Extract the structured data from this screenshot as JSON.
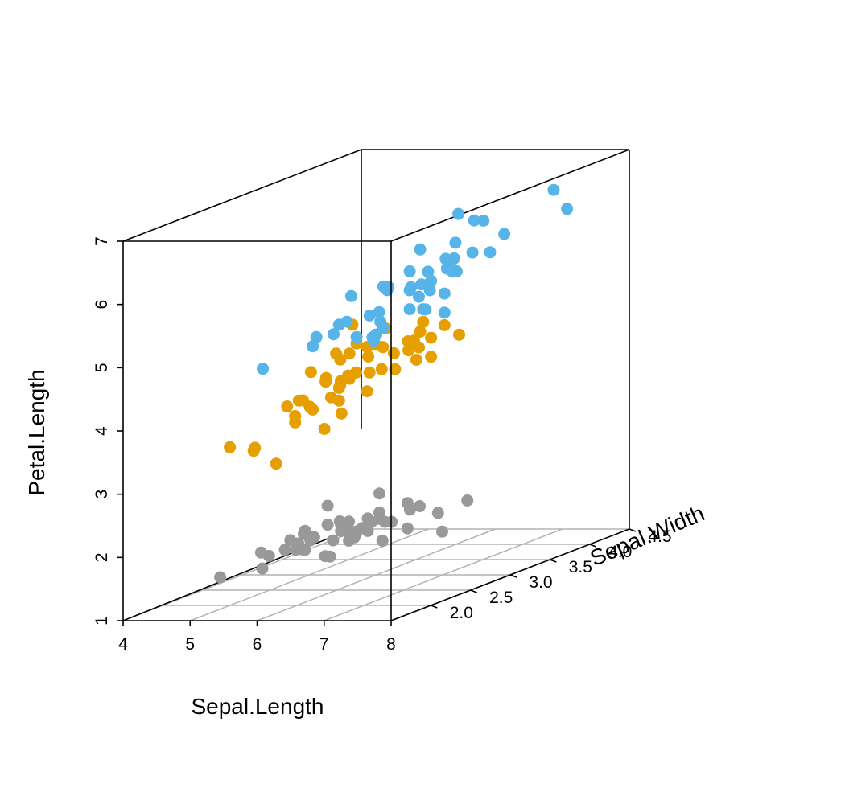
{
  "chart_data": {
    "type": "scatter3d",
    "title": "",
    "xlabel": "Sepal.Length",
    "ylabel": "Sepal.Width",
    "zlabel": "Petal.Length",
    "xlim": [
      4,
      8
    ],
    "ylim": [
      1.5,
      4.5
    ],
    "zlim": [
      1,
      7
    ],
    "x_ticks": [
      "4",
      "5",
      "6",
      "7",
      "8"
    ],
    "y_ticks": [
      "2.0",
      "2.5",
      "3.0",
      "3.5",
      "4.0",
      "4.5"
    ],
    "z_ticks": [
      "1",
      "2",
      "3",
      "4",
      "5",
      "6",
      "7"
    ],
    "grid": "bottom plane",
    "legend": "none",
    "series": [
      {
        "color": "#999999",
        "points": [
          [
            5.1,
            3.5,
            1.4
          ],
          [
            4.9,
            3.0,
            1.4
          ],
          [
            4.7,
            3.2,
            1.3
          ],
          [
            4.6,
            3.1,
            1.5
          ],
          [
            5.0,
            3.6,
            1.4
          ],
          [
            5.4,
            3.9,
            1.7
          ],
          [
            4.6,
            3.4,
            1.4
          ],
          [
            5.0,
            3.4,
            1.5
          ],
          [
            4.4,
            2.9,
            1.4
          ],
          [
            4.9,
            3.1,
            1.5
          ],
          [
            5.4,
            3.7,
            1.5
          ],
          [
            4.8,
            3.4,
            1.6
          ],
          [
            4.8,
            3.0,
            1.4
          ],
          [
            4.3,
            3.0,
            1.1
          ],
          [
            5.8,
            4.0,
            1.2
          ],
          [
            5.7,
            4.4,
            1.5
          ],
          [
            5.4,
            3.9,
            1.3
          ],
          [
            5.1,
            3.5,
            1.4
          ],
          [
            5.7,
            3.8,
            1.7
          ],
          [
            5.1,
            3.8,
            1.5
          ],
          [
            5.4,
            3.4,
            1.7
          ],
          [
            5.1,
            3.7,
            1.5
          ],
          [
            4.6,
            3.6,
            1.0
          ],
          [
            5.1,
            3.3,
            1.7
          ],
          [
            4.8,
            3.4,
            1.9
          ],
          [
            5.0,
            3.0,
            1.6
          ],
          [
            5.0,
            3.4,
            1.6
          ],
          [
            5.2,
            3.5,
            1.5
          ],
          [
            5.2,
            3.4,
            1.4
          ],
          [
            4.7,
            3.2,
            1.6
          ],
          [
            4.8,
            3.1,
            1.6
          ],
          [
            5.4,
            3.4,
            1.5
          ],
          [
            5.2,
            4.1,
            1.5
          ],
          [
            5.5,
            4.2,
            1.4
          ],
          [
            4.9,
            3.1,
            1.5
          ],
          [
            5.0,
            3.2,
            1.2
          ],
          [
            5.5,
            3.5,
            1.3
          ],
          [
            4.9,
            3.6,
            1.4
          ],
          [
            4.4,
            3.0,
            1.3
          ],
          [
            5.1,
            3.4,
            1.5
          ],
          [
            5.0,
            3.5,
            1.3
          ],
          [
            4.5,
            2.3,
            1.3
          ],
          [
            4.4,
            3.2,
            1.3
          ],
          [
            5.0,
            3.5,
            1.6
          ],
          [
            5.1,
            3.8,
            1.9
          ],
          [
            4.8,
            3.0,
            1.4
          ],
          [
            5.1,
            3.8,
            1.6
          ],
          [
            4.6,
            3.2,
            1.4
          ],
          [
            5.3,
            3.7,
            1.5
          ],
          [
            5.0,
            3.3,
            1.4
          ]
        ]
      },
      {
        "color": "#E69F00",
        "points": [
          [
            7.0,
            3.2,
            4.7
          ],
          [
            6.4,
            3.2,
            4.5
          ],
          [
            6.9,
            3.1,
            4.9
          ],
          [
            5.5,
            2.3,
            4.0
          ],
          [
            6.5,
            2.8,
            4.6
          ],
          [
            5.7,
            2.8,
            4.5
          ],
          [
            6.3,
            3.3,
            4.7
          ],
          [
            4.9,
            2.4,
            3.3
          ],
          [
            6.6,
            2.9,
            4.6
          ],
          [
            5.2,
            2.7,
            3.9
          ],
          [
            5.0,
            2.0,
            3.5
          ],
          [
            5.9,
            3.0,
            4.2
          ],
          [
            6.0,
            2.2,
            4.0
          ],
          [
            6.1,
            2.9,
            4.7
          ],
          [
            5.6,
            2.9,
            3.6
          ],
          [
            6.7,
            3.1,
            4.4
          ],
          [
            5.6,
            3.0,
            4.5
          ],
          [
            5.8,
            2.7,
            4.1
          ],
          [
            6.2,
            2.2,
            4.5
          ],
          [
            5.6,
            2.5,
            3.9
          ],
          [
            5.9,
            3.2,
            4.8
          ],
          [
            6.1,
            2.8,
            4.0
          ],
          [
            6.3,
            2.5,
            4.9
          ],
          [
            6.1,
            2.8,
            4.7
          ],
          [
            6.4,
            2.9,
            4.3
          ],
          [
            6.6,
            3.0,
            4.4
          ],
          [
            6.8,
            2.8,
            4.8
          ],
          [
            6.7,
            3.0,
            5.0
          ],
          [
            6.0,
            2.9,
            4.5
          ],
          [
            5.7,
            2.6,
            3.5
          ],
          [
            5.5,
            2.4,
            3.8
          ],
          [
            5.5,
            2.4,
            3.7
          ],
          [
            5.8,
            2.7,
            3.9
          ],
          [
            6.0,
            2.7,
            5.1
          ],
          [
            5.4,
            3.0,
            4.5
          ],
          [
            6.0,
            3.4,
            4.5
          ],
          [
            6.7,
            3.1,
            4.7
          ],
          [
            6.3,
            2.3,
            4.4
          ],
          [
            5.6,
            3.0,
            4.1
          ],
          [
            5.5,
            2.5,
            4.0
          ],
          [
            5.5,
            2.6,
            4.4
          ],
          [
            6.1,
            3.0,
            4.6
          ],
          [
            5.8,
            2.6,
            4.0
          ],
          [
            5.0,
            2.3,
            3.3
          ],
          [
            5.6,
            2.7,
            4.2
          ],
          [
            5.7,
            3.0,
            4.2
          ],
          [
            5.7,
            2.9,
            4.2
          ],
          [
            6.2,
            2.9,
            4.3
          ],
          [
            5.1,
            2.5,
            3.0
          ],
          [
            5.7,
            2.8,
            4.1
          ]
        ]
      },
      {
        "color": "#56B4E9",
        "points": [
          [
            6.3,
            3.3,
            6.0
          ],
          [
            5.8,
            2.7,
            5.1
          ],
          [
            7.1,
            3.0,
            5.9
          ],
          [
            6.3,
            2.9,
            5.6
          ],
          [
            6.5,
            3.0,
            5.8
          ],
          [
            7.6,
            3.0,
            6.6
          ],
          [
            4.9,
            2.5,
            4.5
          ],
          [
            7.3,
            2.9,
            6.3
          ],
          [
            6.7,
            2.5,
            5.8
          ],
          [
            7.2,
            3.6,
            6.1
          ],
          [
            6.5,
            3.2,
            5.1
          ],
          [
            6.4,
            2.7,
            5.3
          ],
          [
            6.8,
            3.0,
            5.5
          ],
          [
            5.7,
            2.5,
            5.0
          ],
          [
            5.8,
            2.8,
            5.1
          ],
          [
            6.4,
            3.2,
            5.3
          ],
          [
            6.5,
            3.0,
            5.5
          ],
          [
            7.7,
            3.8,
            6.7
          ],
          [
            7.7,
            2.6,
            6.9
          ],
          [
            6.0,
            2.2,
            5.0
          ],
          [
            6.9,
            3.2,
            5.7
          ],
          [
            5.6,
            2.8,
            4.9
          ],
          [
            7.7,
            2.8,
            6.7
          ],
          [
            6.3,
            2.7,
            4.9
          ],
          [
            6.7,
            3.3,
            5.7
          ],
          [
            7.2,
            3.2,
            6.0
          ],
          [
            6.2,
            2.8,
            4.8
          ],
          [
            6.1,
            3.0,
            4.9
          ],
          [
            6.4,
            2.8,
            5.6
          ],
          [
            7.2,
            3.0,
            5.8
          ],
          [
            7.4,
            2.8,
            6.1
          ],
          [
            7.9,
            3.8,
            6.4
          ],
          [
            6.4,
            2.8,
            5.6
          ],
          [
            6.3,
            2.8,
            5.1
          ],
          [
            6.1,
            2.6,
            5.6
          ],
          [
            7.7,
            3.0,
            6.1
          ],
          [
            6.3,
            3.4,
            5.6
          ],
          [
            6.4,
            3.1,
            5.5
          ],
          [
            6.0,
            3.0,
            4.8
          ],
          [
            6.9,
            3.1,
            5.4
          ],
          [
            6.7,
            3.1,
            5.6
          ],
          [
            6.9,
            3.1,
            5.1
          ],
          [
            5.8,
            2.7,
            5.1
          ],
          [
            6.8,
            3.2,
            5.9
          ],
          [
            6.7,
            3.3,
            5.7
          ],
          [
            6.7,
            3.0,
            5.2
          ],
          [
            6.3,
            2.5,
            5.0
          ],
          [
            6.5,
            3.0,
            5.2
          ],
          [
            6.2,
            3.4,
            5.4
          ],
          [
            5.9,
            3.0,
            5.1
          ]
        ]
      }
    ]
  }
}
